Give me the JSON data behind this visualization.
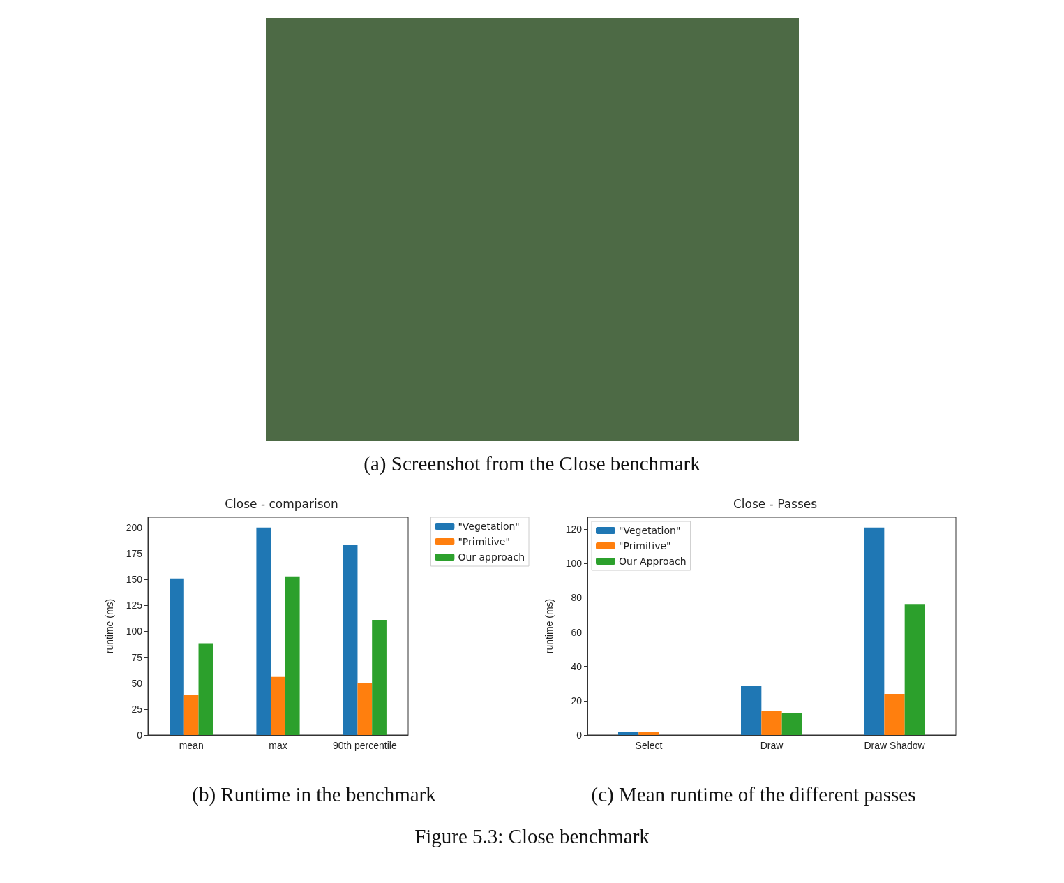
{
  "chart_data": [
    {
      "type": "other",
      "annotations": [
        "(a) Screenshot from the Close benchmark",
        "Figure 5.3:  Close benchmark"
      ]
    },
    {
      "type": "bar",
      "title": "Close - comparison",
      "ylabel": "runtime (ms)",
      "categories": [
        "mean",
        "max",
        "90th percentile"
      ],
      "ylim": [
        0,
        210
      ],
      "yticks": [
        0,
        25,
        50,
        75,
        100,
        125,
        150,
        175,
        200
      ],
      "grid": false,
      "legend": "top right",
      "annotations": [
        "(b) Runtime in the benchmark"
      ],
      "series": [
        {
          "name": "\"Vegetation\"",
          "color": "#1f77b4",
          "values": [
            151,
            200,
            183
          ]
        },
        {
          "name": "\"Primitive\"",
          "color": "#ff7f0e",
          "values": [
            38.5,
            56,
            50
          ]
        },
        {
          "name": "Our approach",
          "color": "#2ca02c",
          "values": [
            88.5,
            153,
            111
          ]
        }
      ]
    },
    {
      "type": "bar",
      "title": "Close - Passes",
      "ylabel": "runtime (ms)",
      "categories": [
        "Select",
        "Draw",
        "Draw Shadow"
      ],
      "ylim": [
        0,
        127
      ],
      "yticks": [
        0,
        20,
        40,
        60,
        80,
        100,
        120
      ],
      "grid": false,
      "legend": "top left",
      "annotations": [
        "(c) Mean runtime of the different passes"
      ],
      "series": [
        {
          "name": "\"Vegetation\"",
          "color": "#1f77b4",
          "values": [
            2,
            28.5,
            121
          ]
        },
        {
          "name": "\"Primitive\"",
          "color": "#ff7f0e",
          "values": [
            2,
            14,
            24
          ]
        },
        {
          "name": "Our Approach",
          "color": "#2ca02c",
          "values": [
            0,
            13,
            76
          ]
        }
      ]
    }
  ]
}
